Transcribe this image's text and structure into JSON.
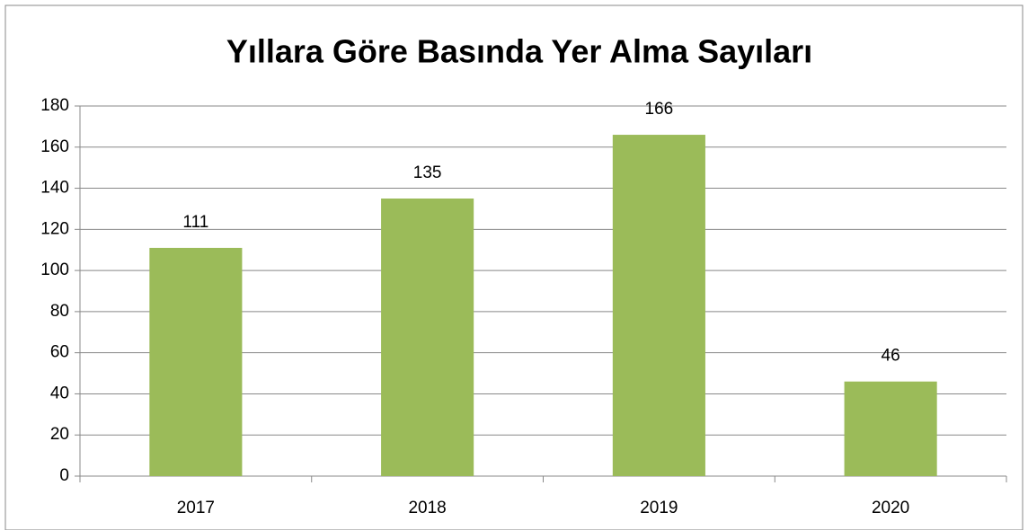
{
  "chart_data": {
    "type": "bar",
    "title": "Yıllara Göre Basında Yer Alma Sayıları",
    "categories": [
      "2017",
      "2018",
      "2019",
      "2020"
    ],
    "values": [
      111,
      135,
      166,
      46
    ],
    "color": "#9bbb59",
    "ylim": [
      0,
      180
    ],
    "yticks": [
      0,
      20,
      40,
      60,
      80,
      100,
      120,
      140,
      160,
      180
    ],
    "grid": true
  }
}
